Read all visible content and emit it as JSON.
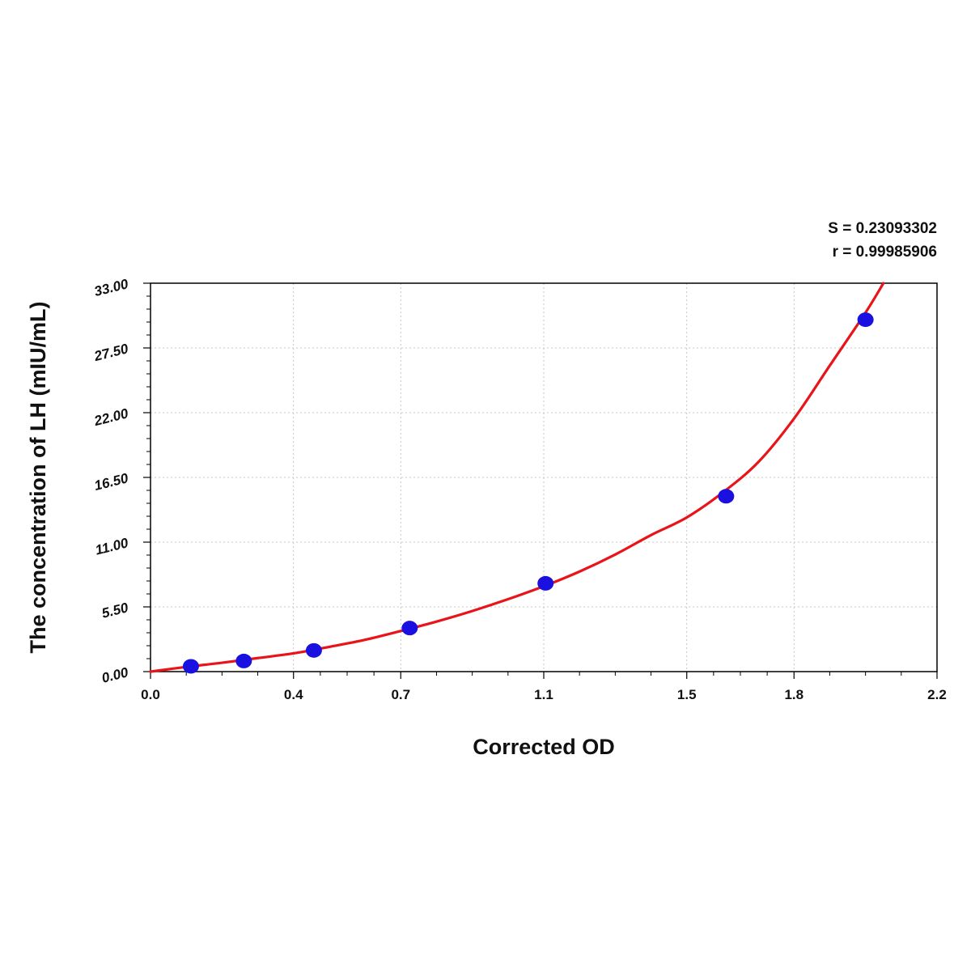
{
  "stats": {
    "s_text": "S = 0.23093302",
    "r_text": "r = 0.99985906"
  },
  "chart_data": {
    "type": "scatter",
    "xlabel": "Corrected OD",
    "ylabel": "The concentration of LH (mIU/mL)",
    "xlim": [
      0.0,
      2.2
    ],
    "ylim": [
      0.0,
      33.0
    ],
    "x_ticks": [
      0.0,
      0.4,
      0.7,
      1.1,
      1.5,
      1.8,
      2.2
    ],
    "x_tick_labels": [
      "0.0",
      "0.4",
      "0.7",
      "1.1",
      "1.5",
      "1.8",
      "2.2"
    ],
    "y_ticks": [
      0.0,
      5.5,
      11.0,
      16.5,
      22.0,
      27.5,
      33.0
    ],
    "y_tick_labels": [
      "0.00",
      "5.50",
      "11.00",
      "16.50",
      "22.00",
      "27.50",
      "33.00"
    ],
    "grid": true,
    "series": [
      {
        "kind": "points",
        "color": "#1a10e0",
        "x": [
          0.113,
          0.261,
          0.457,
          0.725,
          1.105,
          1.61,
          2.0
        ],
        "y": [
          0.45,
          0.9,
          1.8,
          3.7,
          7.5,
          14.9,
          29.9
        ]
      },
      {
        "kind": "fit-curve",
        "color": "#e8141a",
        "x": [
          0.0,
          0.1,
          0.2,
          0.3,
          0.4,
          0.5,
          0.6,
          0.7,
          0.8,
          0.9,
          1.0,
          1.1,
          1.2,
          1.3,
          1.4,
          1.5,
          1.6,
          1.7,
          1.8,
          1.9,
          2.0,
          2.05
        ],
        "y": [
          0.0,
          0.4,
          0.75,
          1.15,
          1.55,
          2.1,
          2.7,
          3.45,
          4.25,
          5.15,
          6.15,
          7.25,
          8.5,
          9.95,
          11.6,
          13.1,
          15.2,
          17.8,
          21.5,
          26.0,
          30.5,
          33.0
        ]
      }
    ]
  }
}
